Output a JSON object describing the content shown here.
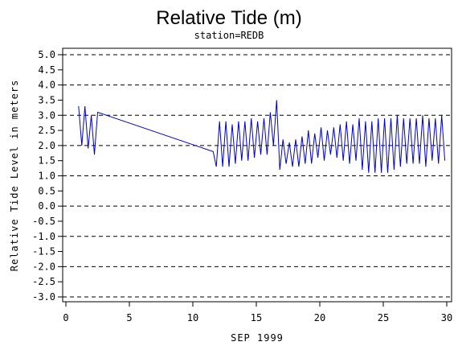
{
  "chart_data": {
    "type": "line",
    "title": "Relative Tide (m)",
    "subtitle": "station=REDB",
    "xlabel": "SEP 1999",
    "ylabel": "Relative Tide Level in meters",
    "xlim": [
      0,
      30
    ],
    "ylim": [
      -3.0,
      5.0
    ],
    "xticks": [
      0,
      5,
      10,
      15,
      20,
      25,
      30
    ],
    "xtick_labels": [
      "0",
      "5",
      "10",
      "15",
      "20",
      "25",
      "30"
    ],
    "yticks": [
      5.0,
      4.5,
      4.0,
      3.5,
      3.0,
      2.5,
      2.0,
      1.5,
      1.0,
      0.5,
      0.0,
      -0.5,
      -1.0,
      -1.5,
      -2.0,
      -2.5,
      -3.0
    ],
    "ytick_labels": [
      "5.0",
      "4.5",
      "4.0",
      "3.5",
      "3.0",
      "2.5",
      "2.0",
      "1.5",
      "1.0",
      "0.5",
      "0.0",
      "-0.5",
      "-1.0",
      "-1.5",
      "-2.0",
      "-2.5",
      "-3.0"
    ],
    "grid": "horizontal dashed at integer levels",
    "line_color": "#0000cc",
    "series": [
      {
        "x": [
          1.0,
          1.25,
          1.5,
          1.75,
          2.0,
          2.25,
          2.5,
          11.6,
          11.85,
          12.1,
          12.35,
          12.6,
          12.85,
          13.1,
          13.35,
          13.6,
          13.85,
          14.1,
          14.35,
          14.6,
          14.85,
          15.1,
          15.35,
          15.6,
          15.85,
          16.1,
          16.35,
          16.6,
          16.85,
          17.1,
          17.35,
          17.6,
          17.85,
          18.1,
          18.35,
          18.6,
          18.85,
          19.1,
          19.35,
          19.6,
          19.85,
          20.1,
          20.35,
          20.6,
          20.85,
          21.1,
          21.35,
          21.6,
          21.85,
          22.1,
          22.35,
          22.6,
          22.85,
          23.1,
          23.35,
          23.6,
          23.85,
          24.1,
          24.35,
          24.6,
          24.85,
          25.1,
          25.35,
          25.6,
          25.85,
          26.1,
          26.35,
          26.6,
          26.85,
          27.1,
          27.35,
          27.6,
          27.85,
          28.1,
          28.35,
          28.6,
          28.85,
          29.1,
          29.35,
          29.6,
          29.85
        ],
        "y": [
          3.3,
          2.0,
          3.3,
          1.9,
          3.0,
          1.7,
          3.1,
          1.8,
          1.3,
          2.8,
          1.3,
          2.8,
          1.3,
          2.7,
          1.4,
          2.8,
          1.5,
          2.8,
          1.5,
          2.9,
          1.6,
          2.8,
          1.7,
          2.9,
          1.7,
          3.1,
          2.0,
          3.5,
          1.2,
          2.2,
          1.4,
          2.1,
          1.3,
          2.2,
          1.3,
          2.3,
          1.4,
          2.5,
          1.4,
          2.4,
          1.6,
          2.6,
          1.5,
          2.5,
          1.7,
          2.6,
          1.6,
          2.7,
          1.5,
          2.8,
          1.4,
          2.7,
          1.5,
          2.9,
          1.2,
          2.8,
          1.1,
          2.8,
          1.1,
          2.9,
          1.1,
          2.9,
          1.1,
          2.9,
          1.2,
          3.0,
          1.3,
          2.9,
          1.4,
          2.9,
          1.4,
          2.9,
          1.4,
          3.0,
          1.3,
          2.9,
          1.5,
          2.9,
          1.4,
          3.0,
          1.5
        ]
      }
    ]
  }
}
